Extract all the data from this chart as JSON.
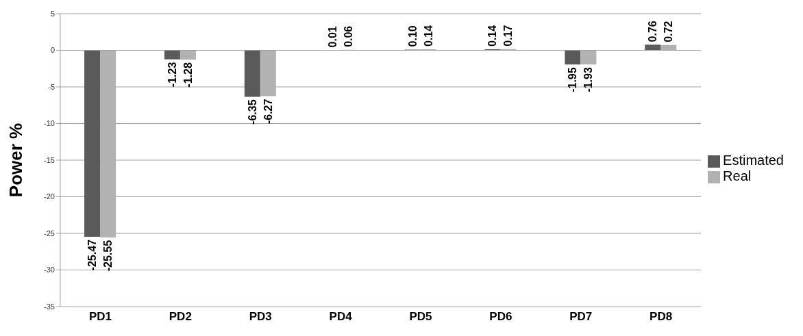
{
  "chart_data": {
    "type": "bar",
    "ylabel": "Power %",
    "categories": [
      "PD1",
      "PD2",
      "PD3",
      "PD4",
      "PD5",
      "PD6",
      "PD7",
      "PD8"
    ],
    "series": [
      {
        "name": "Estimated",
        "color": "#5a5a5a",
        "values": [
          -25.47,
          -1.23,
          -6.35,
          0.01,
          0.1,
          0.14,
          -1.95,
          0.76
        ],
        "value_labels": [
          "-25.47",
          "-1.23",
          "-6.35",
          "0.01",
          "0.10",
          "0.14",
          "-1.95",
          "0.76"
        ]
      },
      {
        "name": "Real",
        "color": "#b2b2b2",
        "values": [
          -25.55,
          -1.28,
          -6.27,
          0.06,
          0.14,
          0.17,
          -1.93,
          0.72
        ],
        "value_labels": [
          "-25.55",
          "-1.28",
          "-6.27",
          "0.06",
          "0.14",
          "0.17",
          "-1.93",
          "0.72"
        ]
      }
    ],
    "ylim": [
      -35,
      5
    ],
    "yticks": [
      -35,
      -30,
      -25,
      -20,
      -15,
      -10,
      -5,
      0,
      5
    ],
    "grid": "y",
    "legend": "right"
  }
}
